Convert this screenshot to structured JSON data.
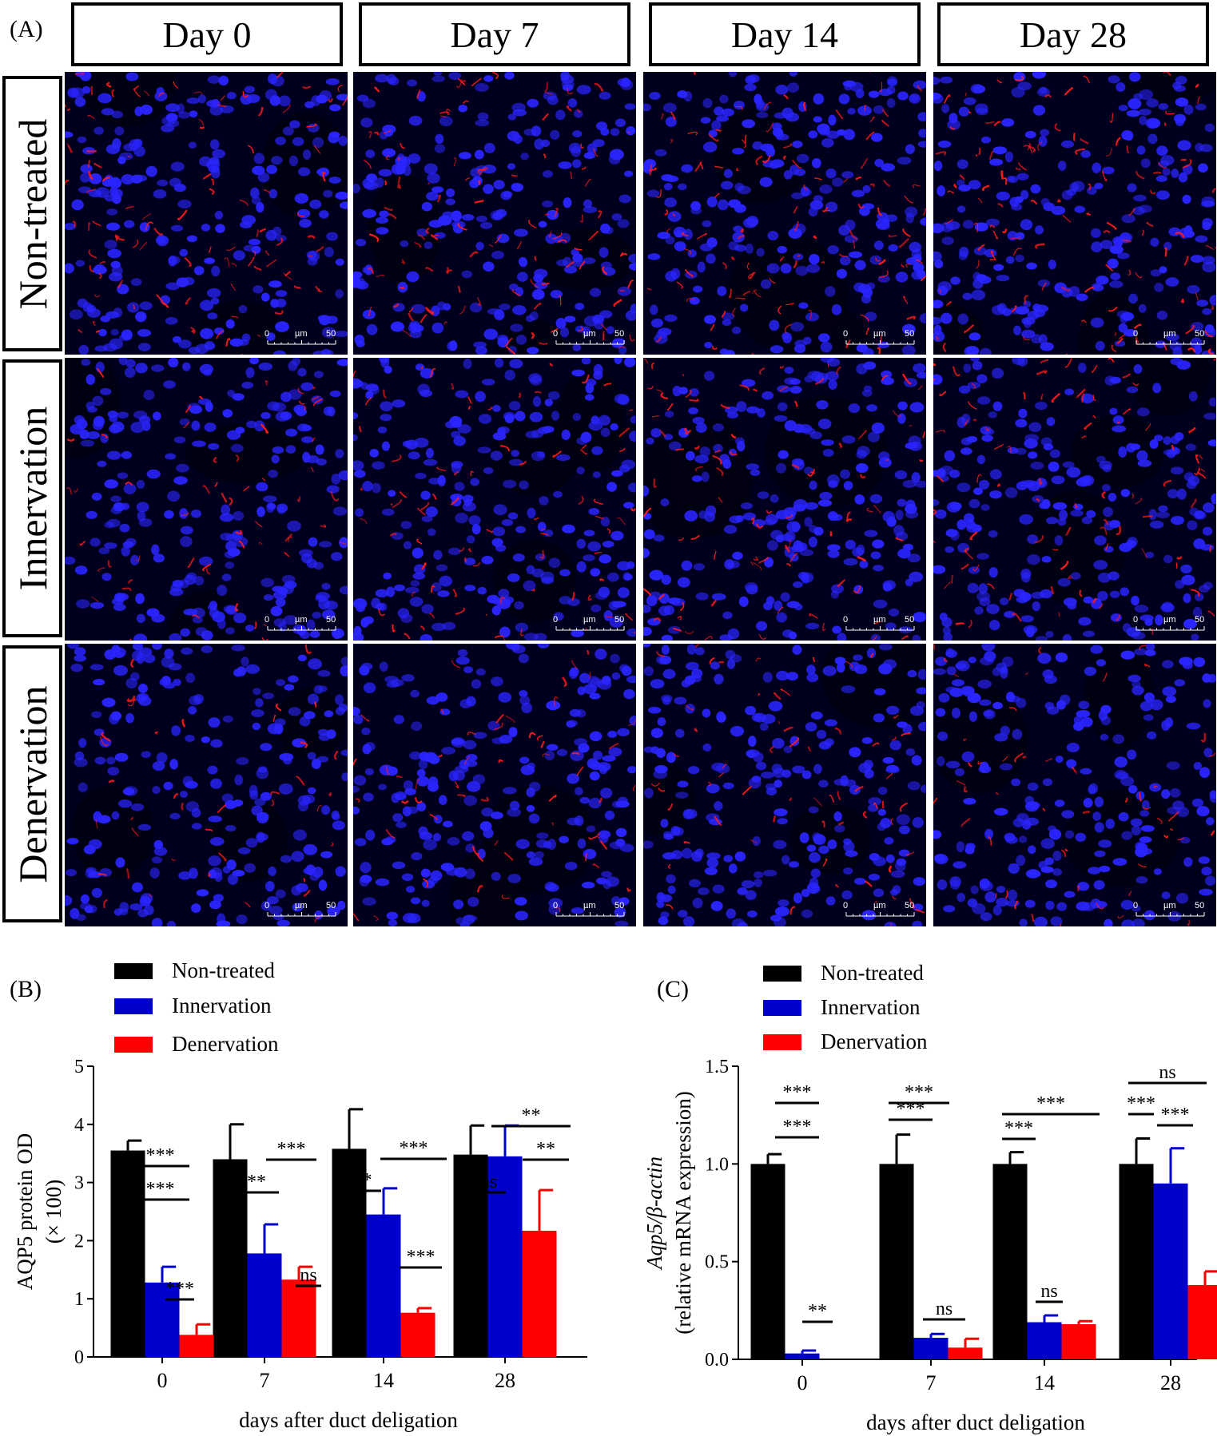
{
  "panel_a": {
    "letter": "(A)",
    "columns": [
      "Day 0",
      "Day 7",
      "Day 14",
      "Day 28"
    ],
    "rows": [
      "Non-treated",
      "Innervation",
      "Denervation"
    ],
    "scalebar": {
      "start": "0",
      "unit": "µm",
      "end": "50"
    },
    "colors": {
      "nuclei": "#2a24ff",
      "aqp5": "#ff1a1a",
      "background": "#00001e"
    }
  },
  "panel_b": {
    "letter": "(B)",
    "legend": [
      "Non-treated",
      "Innervation",
      "Denervation"
    ],
    "significance": [
      "***",
      "***",
      "***",
      "**",
      "***",
      "ns",
      "*",
      "***",
      "***",
      "ns",
      "**",
      "**"
    ]
  },
  "panel_c": {
    "letter": "(C)",
    "legend": [
      "Non-treated",
      "Innervation",
      "Denervation"
    ],
    "significance": [
      "***",
      "***",
      "**",
      "***",
      "***",
      "ns",
      "***",
      "***",
      "ns",
      "***",
      "ns",
      "***"
    ]
  },
  "chart_data": [
    {
      "type": "bar",
      "categories": [
        "0",
        "7",
        "14",
        "28"
      ],
      "series": [
        {
          "name": "Non-treated",
          "color": "#000000",
          "values": [
            3.55,
            3.4,
            3.58,
            3.48
          ],
          "errors": [
            0.17,
            0.6,
            0.68,
            0.5
          ]
        },
        {
          "name": "Innervation",
          "color": "#0000cc",
          "values": [
            1.28,
            1.78,
            2.45,
            3.45
          ],
          "errors": [
            0.27,
            0.5,
            0.45,
            0.53
          ]
        },
        {
          "name": "Denervation",
          "color": "#ff0000",
          "values": [
            0.38,
            1.33,
            0.76,
            2.17
          ],
          "errors": [
            0.18,
            0.22,
            0.08,
            0.7
          ]
        }
      ],
      "xlabel": "days after duct deligation",
      "ylabel": "AQP5 protein OD",
      "ylabel2": "(× 100)",
      "ylim": [
        0,
        5
      ],
      "yticks": [
        "0",
        "1",
        "2",
        "3",
        "4",
        "5"
      ]
    },
    {
      "type": "bar",
      "categories": [
        "0",
        "7",
        "14",
        "28"
      ],
      "series": [
        {
          "name": "Non-treated",
          "color": "#000000",
          "values": [
            1.0,
            1.0,
            1.0,
            1.0
          ],
          "errors": [
            0.05,
            0.15,
            0.06,
            0.13
          ]
        },
        {
          "name": "Innervation",
          "color": "#0000cc",
          "values": [
            0.03,
            0.11,
            0.19,
            0.9
          ],
          "errors": [
            0.015,
            0.02,
            0.035,
            0.18
          ]
        },
        {
          "name": "Denervation",
          "color": "#ff0000",
          "values": [
            0.0,
            0.06,
            0.18,
            0.38
          ],
          "errors": [
            0.0,
            0.045,
            0.015,
            0.07
          ]
        }
      ],
      "xlabel": "days after duct deligation",
      "ylabel": "Aqp5/β-actin",
      "ylabel2": "(relative mRNA expression)",
      "ylim": [
        0,
        1.5
      ],
      "yticks": [
        "0.0",
        "0.5",
        "1.0",
        "1.5"
      ]
    }
  ]
}
